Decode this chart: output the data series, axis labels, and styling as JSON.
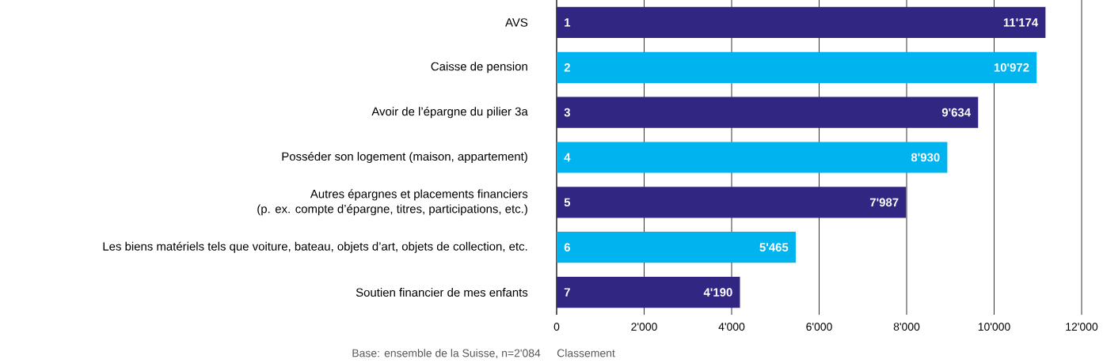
{
  "chart_data": {
    "type": "bar",
    "orientation": "horizontal",
    "categories": [
      "AVS",
      "Caisse de pension",
      "Avoir de l’épargne du pilier 3a",
      "Posséder son logement (maison, appartement)",
      "Autres épargnes et placements financiers\n(p. ex. compte d’épargne, titres, participations, etc.)",
      "Les biens matériels tels que voiture, bateau, objets d’art, objets de collection, etc.",
      "Soutien financier de mes enfants"
    ],
    "values": [
      11174,
      10972,
      9634,
      8930,
      7987,
      5465,
      4190
    ],
    "value_labels": [
      "11'174",
      "10'972",
      "9'634",
      "8'930",
      "7'987",
      "5'465",
      "4'190"
    ],
    "colors": [
      "#312783",
      "#00b5ef",
      "#312783",
      "#00b5ef",
      "#312783",
      "#00b5ef",
      "#312783"
    ],
    "xlabel": "Classement",
    "xlim": [
      0,
      12000
    ],
    "xticks": [
      0,
      {
        "value": 2000,
        "label": "2'000"
      },
      {
        "value": 4000,
        "label": "4'000"
      },
      {
        "value": 6000,
        "label": "6'000"
      },
      {
        "value": 8000,
        "label": "8'000"
      },
      {
        "value": 10000,
        "label": "10'000"
      },
      {
        "value": 12000,
        "label": "12'000"
      }
    ],
    "grid": "x",
    "annotations": [
      "1",
      "2",
      "3",
      "4",
      "5",
      "6",
      "7",
      "Base: ensemble de la Suisse, n=2'084"
    ]
  }
}
